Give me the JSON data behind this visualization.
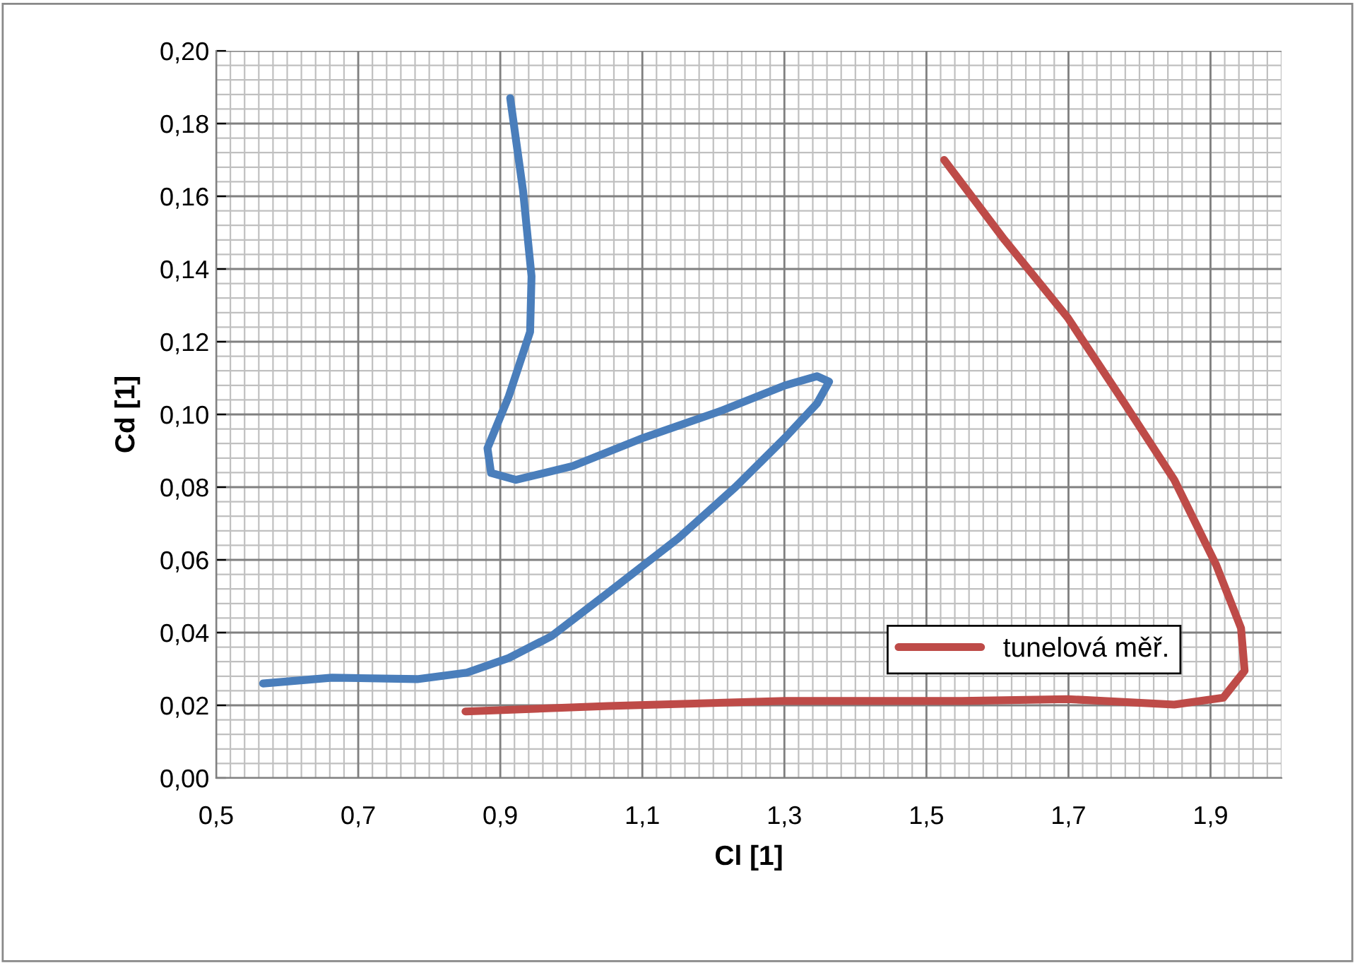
{
  "chart_data": {
    "type": "line",
    "xlabel": "Cl [1]",
    "ylabel": "Cd [1]",
    "xlim": [
      0.5,
      2.0
    ],
    "ylim": [
      0,
      0.2
    ],
    "xticks": [
      {
        "value": 0.5,
        "label": "0,5"
      },
      {
        "value": 0.7,
        "label": "0,7"
      },
      {
        "value": 0.9,
        "label": "0,9"
      },
      {
        "value": 1.1,
        "label": "1,1"
      },
      {
        "value": 1.3,
        "label": "1,3"
      },
      {
        "value": 1.5,
        "label": "1,5"
      },
      {
        "value": 1.7,
        "label": "1,7"
      },
      {
        "value": 1.9,
        "label": "1,9"
      }
    ],
    "yticks": [
      {
        "value": 0,
        "label": "0,00"
      },
      {
        "value": 0.02,
        "label": "0,02"
      },
      {
        "value": 0.04,
        "label": "0,04"
      },
      {
        "value": 0.06,
        "label": "0,06"
      },
      {
        "value": 0.08,
        "label": "0,08"
      },
      {
        "value": 0.1,
        "label": "0,10"
      },
      {
        "value": 0.12,
        "label": "0,12"
      },
      {
        "value": 0.14,
        "label": "0,14"
      },
      {
        "value": 0.16,
        "label": "0,16"
      },
      {
        "value": 0.18,
        "label": "0,18"
      },
      {
        "value": 0.2,
        "label": "0,20"
      }
    ],
    "grid": true,
    "legend": "bottom right",
    "marker": "none",
    "line_style": "solid",
    "series": [
      {
        "color": "#4a7ebb",
        "x": [
          0.566,
          0.663,
          0.783,
          0.853,
          0.912,
          0.972,
          1.052,
          1.151,
          1.231,
          1.301,
          1.346,
          1.363,
          1.346,
          1.301,
          1.211,
          1.102,
          1.002,
          0.922,
          0.887,
          0.882,
          0.912,
          0.942,
          0.944,
          0.932,
          0.914
        ],
        "values": [
          0.026,
          0.0276,
          0.0272,
          0.029,
          0.033,
          0.039,
          0.051,
          0.066,
          0.08,
          0.0936,
          0.103,
          0.109,
          0.1105,
          0.108,
          0.101,
          0.0936,
          0.0858,
          0.082,
          0.0839,
          0.0907,
          0.105,
          0.1227,
          0.138,
          0.1616,
          0.187
        ]
      },
      {
        "name": "tunelová měř.",
        "color": "#be4b48",
        "x": [
          0.851,
          1.052,
          1.301,
          1.55,
          1.699,
          1.849,
          1.918,
          1.948,
          1.943,
          1.908,
          1.849,
          1.779,
          1.699,
          1.61,
          1.525
        ],
        "values": [
          0.0183,
          0.0198,
          0.0212,
          0.0212,
          0.0217,
          0.0202,
          0.0221,
          0.0295,
          0.0412,
          0.0586,
          0.082,
          0.103,
          0.1266,
          0.148,
          0.17
        ]
      }
    ]
  }
}
